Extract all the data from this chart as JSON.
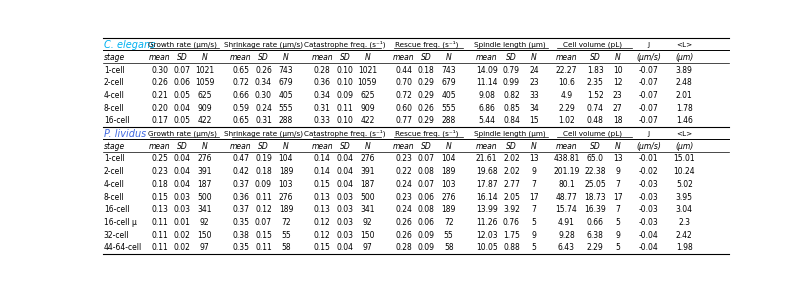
{
  "title_ce": "C. elegans",
  "title_pl": "P. lividus",
  "col_groups": [
    {
      "label": "Growth rate (μm/s)"
    },
    {
      "label": "Shrinkage rate (μm/s)"
    },
    {
      "label": "Catastrophe freq. (s⁻¹)"
    },
    {
      "label": "Rescue freq. (s⁻¹)"
    },
    {
      "label": "Spindle length (μm)"
    },
    {
      "label": "Cell volume (pL)"
    },
    {
      "label": "J"
    },
    {
      "label": "<L>"
    }
  ],
  "sub_headers": [
    "stage",
    "mean",
    "SD",
    "N",
    "mean",
    "SD",
    "N",
    "mean",
    "SD",
    "N",
    "mean",
    "SD",
    "N",
    "mean",
    "SD",
    "N",
    "mean",
    "SD",
    "N",
    "(μm/s)",
    "(μm)"
  ],
  "ce_rows": [
    [
      "1-cell",
      "0.30",
      "0.07",
      "1021",
      "0.65",
      "0.26",
      "743",
      "0.28",
      "0.10",
      "1021",
      "0.44",
      "0.18",
      "743",
      "14.09",
      "0.79",
      "24",
      "22.27",
      "1.83",
      "10",
      "-0.07",
      "3.89"
    ],
    [
      "2-cell",
      "0.26",
      "0.06",
      "1059",
      "0.72",
      "0.34",
      "679",
      "0.36",
      "0.10",
      "1059",
      "0.70",
      "0.29",
      "679",
      "11.14",
      "0.99",
      "23",
      "10.6",
      "2.35",
      "12",
      "-0.07",
      "2.48"
    ],
    [
      "4-cell",
      "0.21",
      "0.05",
      "625",
      "0.66",
      "0.30",
      "405",
      "0.34",
      "0.09",
      "625",
      "0.72",
      "0.29",
      "405",
      "9.08",
      "0.82",
      "33",
      "4.9",
      "1.52",
      "23",
      "-0.07",
      "2.01"
    ],
    [
      "8-cell",
      "0.20",
      "0.04",
      "909",
      "0.59",
      "0.24",
      "555",
      "0.31",
      "0.11",
      "909",
      "0.60",
      "0.26",
      "555",
      "6.86",
      "0.85",
      "34",
      "2.29",
      "0.74",
      "27",
      "-0.07",
      "1.78"
    ],
    [
      "16-cell",
      "0.17",
      "0.05",
      "422",
      "0.65",
      "0.31",
      "288",
      "0.33",
      "0.10",
      "422",
      "0.77",
      "0.29",
      "288",
      "5.44",
      "0.84",
      "15",
      "1.02",
      "0.48",
      "18",
      "-0.07",
      "1.46"
    ]
  ],
  "pl_rows": [
    [
      "1-cell",
      "0.25",
      "0.04",
      "276",
      "0.47",
      "0.19",
      "104",
      "0.14",
      "0.04",
      "276",
      "0.23",
      "0.07",
      "104",
      "21.61",
      "2.02",
      "13",
      "438.81",
      "65.0",
      "13",
      "-0.01",
      "15.01"
    ],
    [
      "2-cell",
      "0.23",
      "0.04",
      "391",
      "0.42",
      "0.18",
      "189",
      "0.14",
      "0.04",
      "391",
      "0.22",
      "0.08",
      "189",
      "19.68",
      "2.02",
      "9",
      "201.19",
      "22.38",
      "9",
      "-0.02",
      "10.24"
    ],
    [
      "4-cell",
      "0.18",
      "0.04",
      "187",
      "0.37",
      "0.09",
      "103",
      "0.15",
      "0.04",
      "187",
      "0.24",
      "0.07",
      "103",
      "17.87",
      "2.77",
      "7",
      "80.1",
      "25.05",
      "7",
      "-0.03",
      "5.02"
    ],
    [
      "8-cell",
      "0.15",
      "0.03",
      "500",
      "0.36",
      "0.11",
      "276",
      "0.13",
      "0.03",
      "500",
      "0.23",
      "0.06",
      "276",
      "16.14",
      "2.05",
      "17",
      "48.77",
      "18.73",
      "17",
      "-0.03",
      "3.95"
    ],
    [
      "16-cell",
      "0.13",
      "0.03",
      "341",
      "0.37",
      "0.12",
      "189",
      "0.13",
      "0.03",
      "341",
      "0.24",
      "0.08",
      "189",
      "13.99",
      "3.92",
      "7",
      "15.74",
      "16.39",
      "7",
      "-0.03",
      "3.04"
    ],
    [
      "16-cell μ",
      "0.11",
      "0.01",
      "92",
      "0.35",
      "0.07",
      "72",
      "0.12",
      "0.03",
      "92",
      "0.26",
      "0.06",
      "72",
      "11.26",
      "0.76",
      "5",
      "4.91",
      "0.66",
      "5",
      "-0.03",
      "2.3"
    ],
    [
      "32-cell",
      "0.11",
      "0.02",
      "150",
      "0.38",
      "0.15",
      "55",
      "0.12",
      "0.03",
      "150",
      "0.26",
      "0.09",
      "55",
      "12.03",
      "1.75",
      "9",
      "9.28",
      "6.38",
      "9",
      "-0.04",
      "2.42"
    ],
    [
      "44-64-cell",
      "0.11",
      "0.02",
      "97",
      "0.35",
      "0.11",
      "58",
      "0.15",
      "0.04",
      "97",
      "0.28",
      "0.09",
      "58",
      "10.05",
      "0.88",
      "5",
      "6.43",
      "2.29",
      "5",
      "-0.04",
      "1.98"
    ]
  ],
  "bg_color": "#ffffff",
  "ce_color": "#00b0f0",
  "pl_color": "#4169e1",
  "font_size": 5.5,
  "title_font_size": 7.0,
  "header_font_size": 5.2
}
